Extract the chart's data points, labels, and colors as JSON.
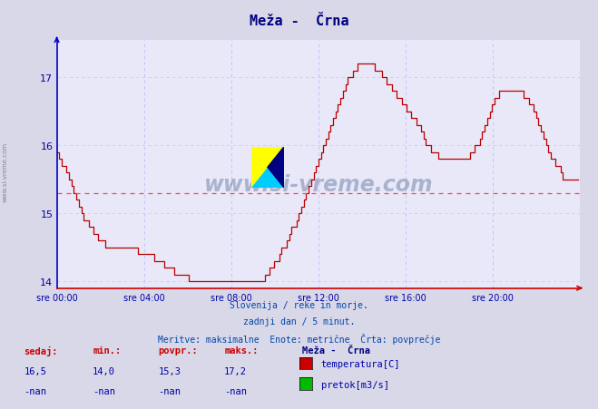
{
  "title": "Meža -  Črna",
  "title_color": "#000080",
  "bg_color": "#d8d8e8",
  "plot_bg_color": "#e8e8f8",
  "line_color": "#bb0000",
  "avg_line_color": "#ff4444",
  "avg_value": 15.3,
  "ylim": [
    13.9,
    17.55
  ],
  "yticks": [
    14,
    15,
    16,
    17
  ],
  "tick_color": "#0000aa",
  "grid_color_h": "#ffbbbb",
  "grid_color_v": "#bbbbff",
  "spine_left_color": "#0000cc",
  "spine_bottom_color": "#cc0000",
  "xtick_hours": [
    0,
    4,
    8,
    12,
    16,
    20
  ],
  "xtick_labels": [
    "sre 00:00",
    "sre 04:00",
    "sre 08:00",
    "sre 12:00",
    "sre 16:00",
    "sre 20:00"
  ],
  "footer_lines": [
    "Slovenija / reke in morje.",
    "zadnji dan / 5 minut.",
    "Meritve: maksimalne  Enote: metrične  Črta: povprečje"
  ],
  "stats_headers": [
    "sedaj:",
    "min.:",
    "povpr.:",
    "maks.:"
  ],
  "stats_values": [
    "16,5",
    "14,0",
    "15,3",
    "17,2"
  ],
  "stats_values2": [
    "-nan",
    "-nan",
    "-nan",
    "-nan"
  ],
  "legend_station": "Meža -  Črna",
  "legend_items": [
    {
      "label": "temperatura[C]",
      "color": "#cc0000"
    },
    {
      "label": "pretok[m3/s]",
      "color": "#00bb00"
    }
  ],
  "temp_data": [
    15.9,
    15.8,
    15.7,
    15.7,
    15.6,
    15.5,
    15.4,
    15.3,
    15.2,
    15.1,
    15.0,
    14.9,
    14.9,
    14.8,
    14.8,
    14.7,
    14.7,
    14.6,
    14.6,
    14.6,
    14.5,
    14.5,
    14.5,
    14.5,
    14.5,
    14.5,
    14.5,
    14.5,
    14.5,
    14.5,
    14.5,
    14.5,
    14.5,
    14.4,
    14.4,
    14.4,
    14.4,
    14.4,
    14.4,
    14.4,
    14.3,
    14.3,
    14.3,
    14.3,
    14.2,
    14.2,
    14.2,
    14.2,
    14.1,
    14.1,
    14.1,
    14.1,
    14.1,
    14.1,
    14.0,
    14.0,
    14.0,
    14.0,
    14.0,
    14.0,
    14.0,
    14.0,
    14.0,
    14.0,
    14.0,
    14.0,
    14.0,
    14.0,
    14.0,
    14.0,
    14.0,
    14.0,
    14.0,
    14.0,
    14.0,
    14.0,
    14.0,
    14.0,
    14.0,
    14.0,
    14.0,
    14.0,
    14.0,
    14.0,
    14.0,
    14.1,
    14.1,
    14.2,
    14.2,
    14.3,
    14.3,
    14.4,
    14.5,
    14.5,
    14.6,
    14.7,
    14.8,
    14.8,
    14.9,
    15.0,
    15.1,
    15.2,
    15.3,
    15.4,
    15.5,
    15.6,
    15.7,
    15.8,
    15.9,
    16.0,
    16.1,
    16.2,
    16.3,
    16.4,
    16.5,
    16.6,
    16.7,
    16.8,
    16.9,
    17.0,
    17.0,
    17.1,
    17.1,
    17.2,
    17.2,
    17.2,
    17.2,
    17.2,
    17.2,
    17.2,
    17.1,
    17.1,
    17.1,
    17.0,
    17.0,
    16.9,
    16.9,
    16.8,
    16.8,
    16.7,
    16.7,
    16.6,
    16.6,
    16.5,
    16.5,
    16.4,
    16.4,
    16.3,
    16.3,
    16.2,
    16.1,
    16.0,
    16.0,
    15.9,
    15.9,
    15.9,
    15.8,
    15.8,
    15.8,
    15.8,
    15.8,
    15.8,
    15.8,
    15.8,
    15.8,
    15.8,
    15.8,
    15.8,
    15.8,
    15.9,
    15.9,
    16.0,
    16.0,
    16.1,
    16.2,
    16.3,
    16.4,
    16.5,
    16.6,
    16.7,
    16.7,
    16.8,
    16.8,
    16.8,
    16.8,
    16.8,
    16.8,
    16.8,
    16.8,
    16.8,
    16.8,
    16.7,
    16.7,
    16.6,
    16.6,
    16.5,
    16.4,
    16.3,
    16.2,
    16.1,
    16.0,
    15.9,
    15.8,
    15.8,
    15.7,
    15.7,
    15.6,
    15.5,
    15.5,
    15.5,
    15.5,
    15.5,
    15.5,
    15.5
  ]
}
